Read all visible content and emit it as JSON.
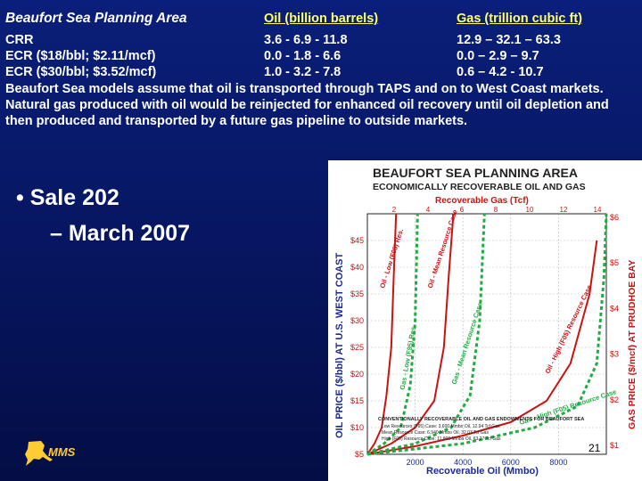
{
  "header": {
    "title": "Beaufort Sea Planning Area",
    "oil_col": "Oil (billion barrels)",
    "gas_col": "Gas (trillion cubic ft)"
  },
  "rows": [
    {
      "label": "CRR",
      "oil": "3.6 - 6.9 - 11.8",
      "gas": "12.9 – 32.1 – 63.3"
    },
    {
      "label": "ECR ($18/bbl; $2.11/mcf)",
      "oil": "0.0 - 1.8 -  6.6",
      "gas": "0.0 – 2.9  –  9.7"
    },
    {
      "label": "ECR ($30/bbl; $3.52/mcf)",
      "oil": "1.0 - 3.2 -  7.8",
      "gas": "0.6 – 4.2  - 10.7"
    }
  ],
  "paragraph": "Beaufort Sea models assume that oil is transported through TAPS and on to West Coast markets.  Natural gas produced with oil would be reinjected for enhanced oil recovery until oil depletion and then produced and transported by a future gas pipeline to outside markets.",
  "bullets": {
    "b1": "Sale 202",
    "b2": "March 2007"
  },
  "logo": {
    "text": "MMS"
  },
  "page_number": "21",
  "colors": {
    "background": "#0a1f7a",
    "header_yellow": "#ffff66",
    "chart_red": "#cc1111",
    "chart_green": "#22aa44"
  },
  "chart_data": {
    "type": "line",
    "title": "BEAUFORT SEA PLANNING AREA",
    "subtitle": "ECONOMICALLY RECOVERABLE OIL AND GAS",
    "top_axis_label": "Recoverable Gas (Tcf)",
    "top_ticks": [
      "2",
      "4",
      "6",
      "8",
      "10",
      "12",
      "14"
    ],
    "xlabel": "Recoverable Oil (Mmbo)",
    "x_ticks": [
      "2000",
      "4000",
      "6000",
      "8000"
    ],
    "xlim": [
      0,
      10000
    ],
    "ylabel": "OIL PRICE ($/bbl) AT U.S. WEST COAST",
    "y_ticks": [
      "$5",
      "$10",
      "$15",
      "$20",
      "$25",
      "$30",
      "$35",
      "$40",
      "$45"
    ],
    "ylim": [
      5,
      50
    ],
    "right_label": "GAS PRICE ($/mcf) AT PRUDHOE BAY",
    "right_ticks": [
      "$1",
      "$2",
      "$3",
      "$4",
      "$5",
      "$6"
    ],
    "series": [
      {
        "name": "Oil - Low (F95) Res.",
        "kind": "oil",
        "x": [
          0,
          300,
          600,
          800,
          1000,
          1100,
          1200
        ],
        "y": [
          5,
          7,
          10,
          16,
          25,
          38,
          50
        ]
      },
      {
        "name": "Oil - Mean Resource Case",
        "kind": "oil",
        "x": [
          0,
          1000,
          2000,
          2800,
          3200,
          3400,
          3600
        ],
        "y": [
          5,
          7,
          10,
          15,
          25,
          38,
          50
        ]
      },
      {
        "name": "Oil - High (F05) Resource Case",
        "kind": "oil",
        "x": [
          0,
          2000,
          4000,
          6000,
          7500,
          8500,
          9300,
          9600
        ],
        "y": [
          5,
          6.5,
          8.5,
          11,
          15,
          22,
          35,
          45
        ]
      },
      {
        "name": "Gas - Low (F95) Res.",
        "kind": "gas",
        "x": [
          0,
          700,
          1400,
          1800,
          2000,
          2100
        ],
        "y": [
          5,
          7,
          10,
          18,
          30,
          50
        ]
      },
      {
        "name": "Gas - Mean Resource Case",
        "kind": "gas",
        "x": [
          0,
          2000,
          3500,
          4300,
          4700,
          4900
        ],
        "y": [
          5,
          7,
          10,
          16,
          30,
          50
        ]
      },
      {
        "name": "Gas - High (F05) Resource Case",
        "kind": "gas",
        "x": [
          0,
          4000,
          7000,
          8800,
          9600,
          9900,
          10000
        ],
        "y": [
          5,
          7,
          10,
          14,
          22,
          38,
          50
        ]
      }
    ],
    "endowment_note": {
      "title": "CONVENTIONALLY RECOVERABLE OIL AND GAS ENDOWMENTS FOR BEAUFORT SEA",
      "lines": [
        "Low Resources (F95) Case: 3,600 Mmbo Oil, 12.94 Tcf Gas",
        "Mean Resource Case: 6,940 Mmbo Oil, 32.07 Tcf Gas",
        "High (F05) Resource Case: 11,800 Mmbo Oil, 63.27 Tcf Gas"
      ]
    }
  }
}
